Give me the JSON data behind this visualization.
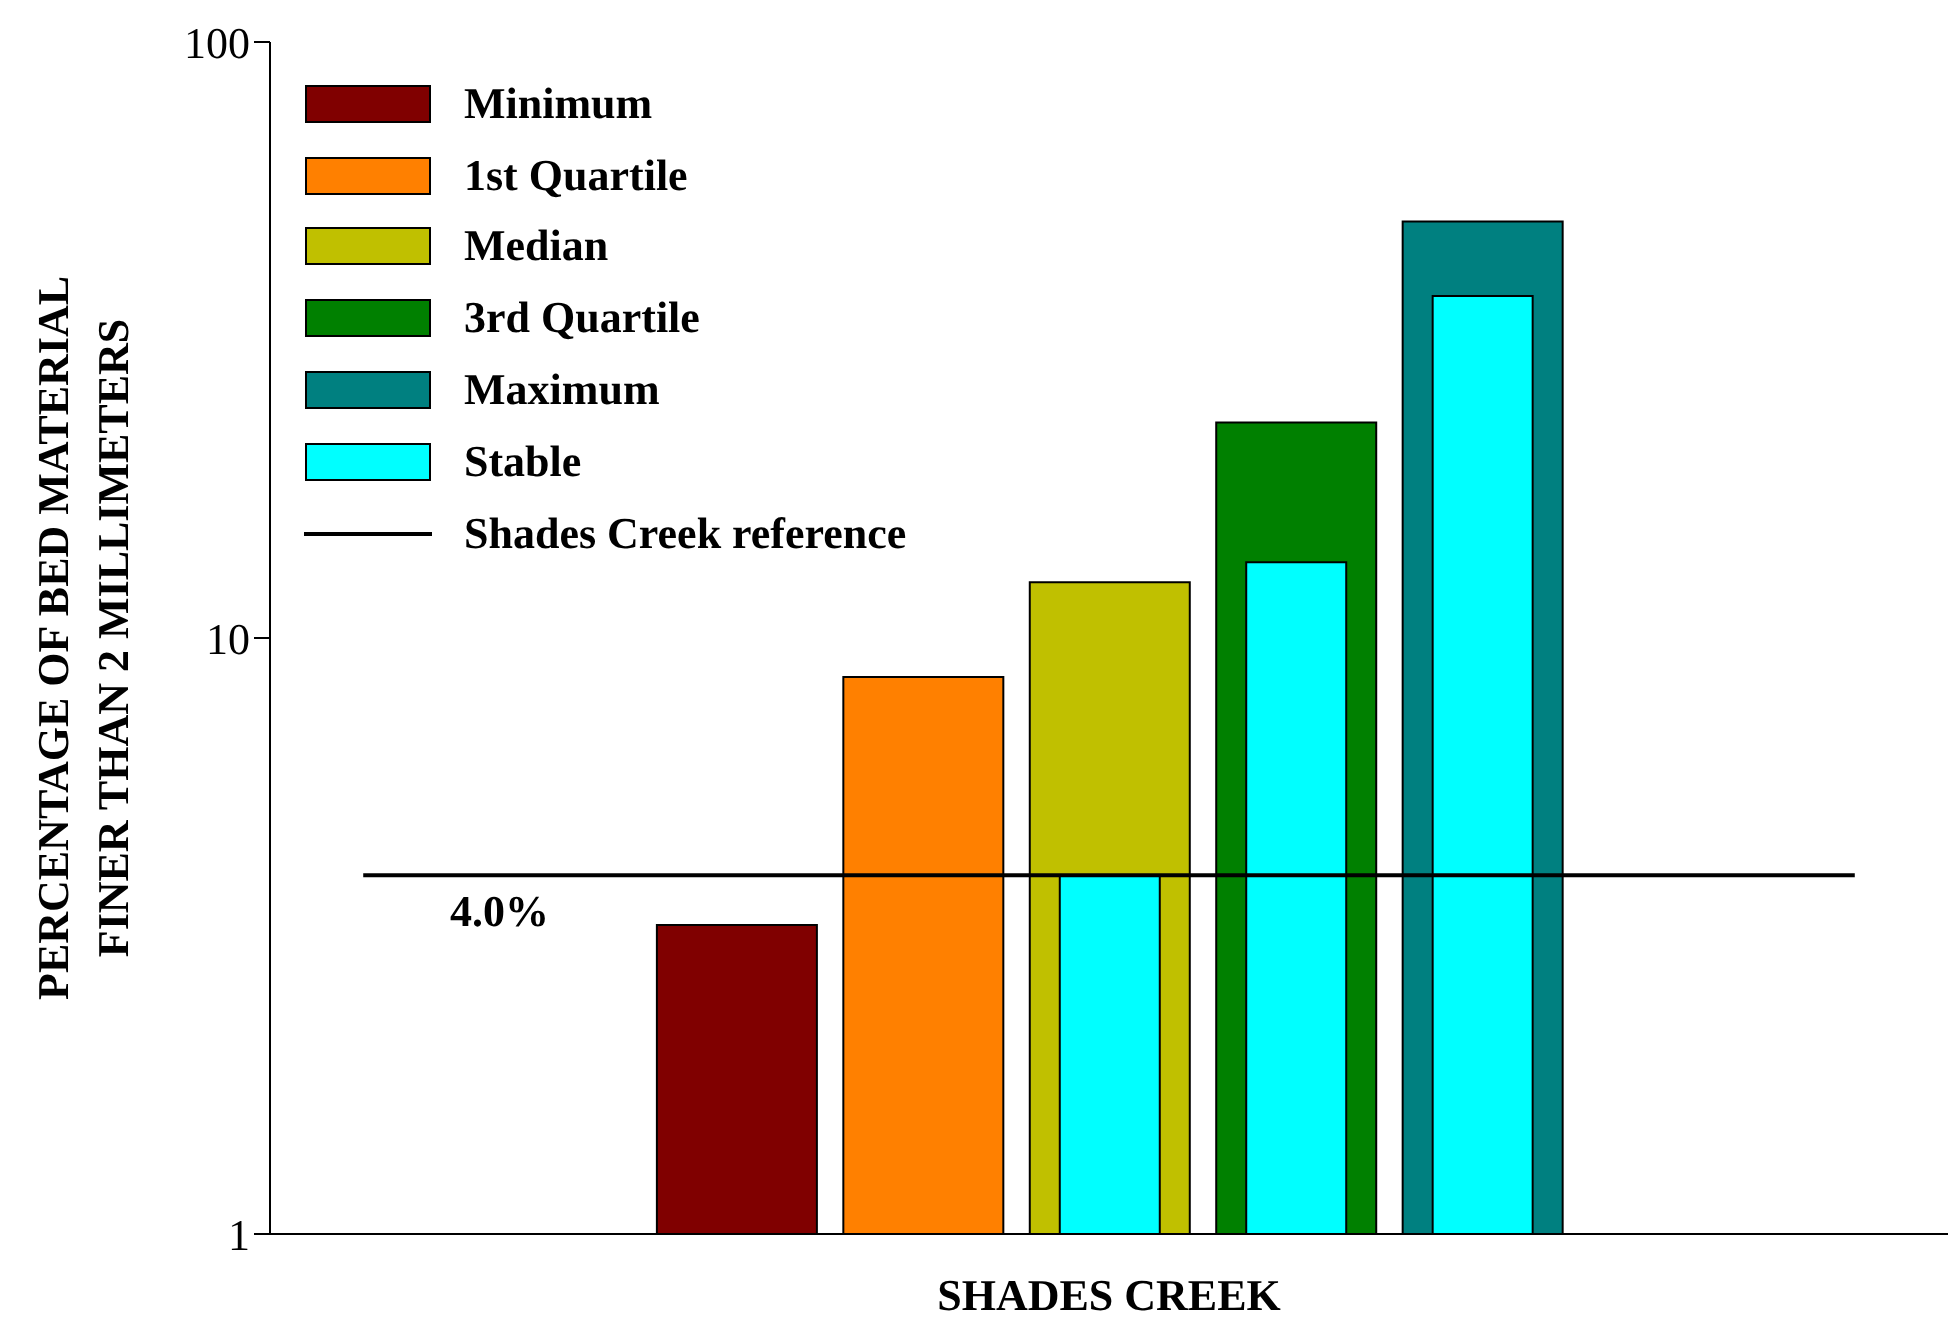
{
  "chart_data": {
    "type": "bar",
    "xlabel": "SHADES CREEK",
    "ylabel": "PERCENTAGE OF BED MATERIAL\nFINER THAN 2 MILLIMETERS",
    "categories": [
      null,
      null,
      null,
      null,
      null,
      null,
      null,
      null,
      null
    ],
    "series": [
      {
        "name": "Minimum",
        "color": "#800000",
        "values": [
          null,
          null,
          3.3,
          null,
          null,
          null,
          null,
          null,
          null
        ]
      },
      {
        "name": "1st Quartile",
        "color": "#ff8000",
        "values": [
          null,
          null,
          null,
          8.6,
          null,
          null,
          null,
          null,
          null
        ]
      },
      {
        "name": "Median",
        "color": "#c0c000",
        "values": [
          null,
          null,
          null,
          null,
          12.4,
          null,
          null,
          null,
          null
        ]
      },
      {
        "name": "3rd Quartile",
        "color": "#008000",
        "values": [
          null,
          null,
          null,
          null,
          null,
          23,
          null,
          null,
          null
        ]
      },
      {
        "name": "Maximum",
        "color": "#008080",
        "values": [
          null,
          null,
          null,
          null,
          null,
          null,
          50,
          null,
          null
        ]
      },
      {
        "name": "Stable",
        "color": "#00ffff",
        "values": [
          null,
          null,
          null,
          null,
          4.0,
          13.4,
          37.5,
          null,
          null
        ]
      },
      {
        "name": "Shades Creek reference",
        "type": "line",
        "color": "#000000",
        "values": [
          4.0,
          4.0,
          4.0,
          4.0,
          4.0,
          4.0,
          4.0,
          4.0,
          4.0
        ]
      }
    ],
    "annotations": [
      {
        "text": "4.0%",
        "y": 4.0
      }
    ],
    "log": true,
    "ylim": [
      1,
      100
    ],
    "yticks": [
      1,
      10,
      100
    ],
    "tick_labels": "y",
    "grid": false,
    "legend": "top left",
    "marker": "none"
  }
}
